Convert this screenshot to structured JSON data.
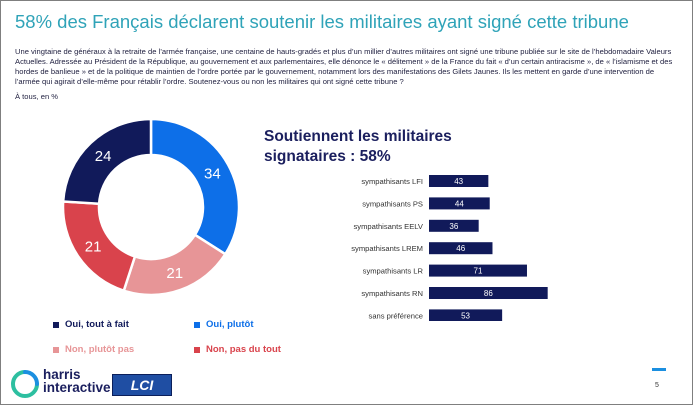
{
  "slide": {
    "title": "58% des Français déclarent soutenir les militaires ayant signé cette tribune",
    "intro": "Une vingtaine de généraux à la retraite de l’armée française, une centaine de hauts-gradés et plus d’un millier d’autres militaires ont signé une tribune publiée  sur le site de l’hebdomadaire Valeurs Actuelles. Adressée au Président de la République,  au gouvernement et aux parlementaires, elle dénonce le « délitement » de la France du fait « d’un certain antiracisme », de « l’islamisme et des hordes de banlieue » et de la politique de maintien de l’ordre portée par le gouvernement, notamment lors des manifestations des Gilets Jaunes. Ils les mettent en garde d’une intervention de l’armée qui agirait d’elle-même pour rétablir l’ordre. Soutenez-vous ou non les militaires qui ont signé cette tribune ?",
    "subtitle": "À tous, en %",
    "page_number": "5"
  },
  "brand": {
    "name_line1": "harris",
    "name_line2": "interactive",
    "partner": "LCI"
  },
  "chart_data": [
    {
      "type": "pie",
      "variant": "donut",
      "slices": [
        {
          "name": "Oui, plutôt",
          "value": 34,
          "color": "#0d6fe8"
        },
        {
          "name": "Non, plutôt pas",
          "value": 21,
          "color": "#e79597"
        },
        {
          "name": "Non, pas du tout",
          "value": 21,
          "color": "#d9434c"
        },
        {
          "name": "Oui, tout à fait",
          "value": 24,
          "color": "#111a5a"
        }
      ],
      "legend": [
        {
          "label": "Oui, tout à fait",
          "color": "#111a5a"
        },
        {
          "label": "Oui, plutôt",
          "color": "#0d6fe8"
        },
        {
          "label": "Non, plutôt pas",
          "color": "#e79597"
        },
        {
          "label": "Non, pas du tout",
          "color": "#d9434c"
        }
      ],
      "legend_position": "bottom"
    },
    {
      "type": "bar",
      "orientation": "horizontal",
      "title_line1": "Soutiennent les militaires",
      "title_line2": "signataires : 58%",
      "categories": [
        "sympathisants LFI",
        "sympathisants PS",
        "sympathisants EELV",
        "sympathisants LREM",
        "sympathisants LR",
        "sympathisants RN",
        "sans préférence"
      ],
      "values": [
        43,
        44,
        36,
        46,
        71,
        86,
        53
      ],
      "color": "#111a5a",
      "xlim": [
        0,
        100
      ],
      "grid": false
    }
  ]
}
